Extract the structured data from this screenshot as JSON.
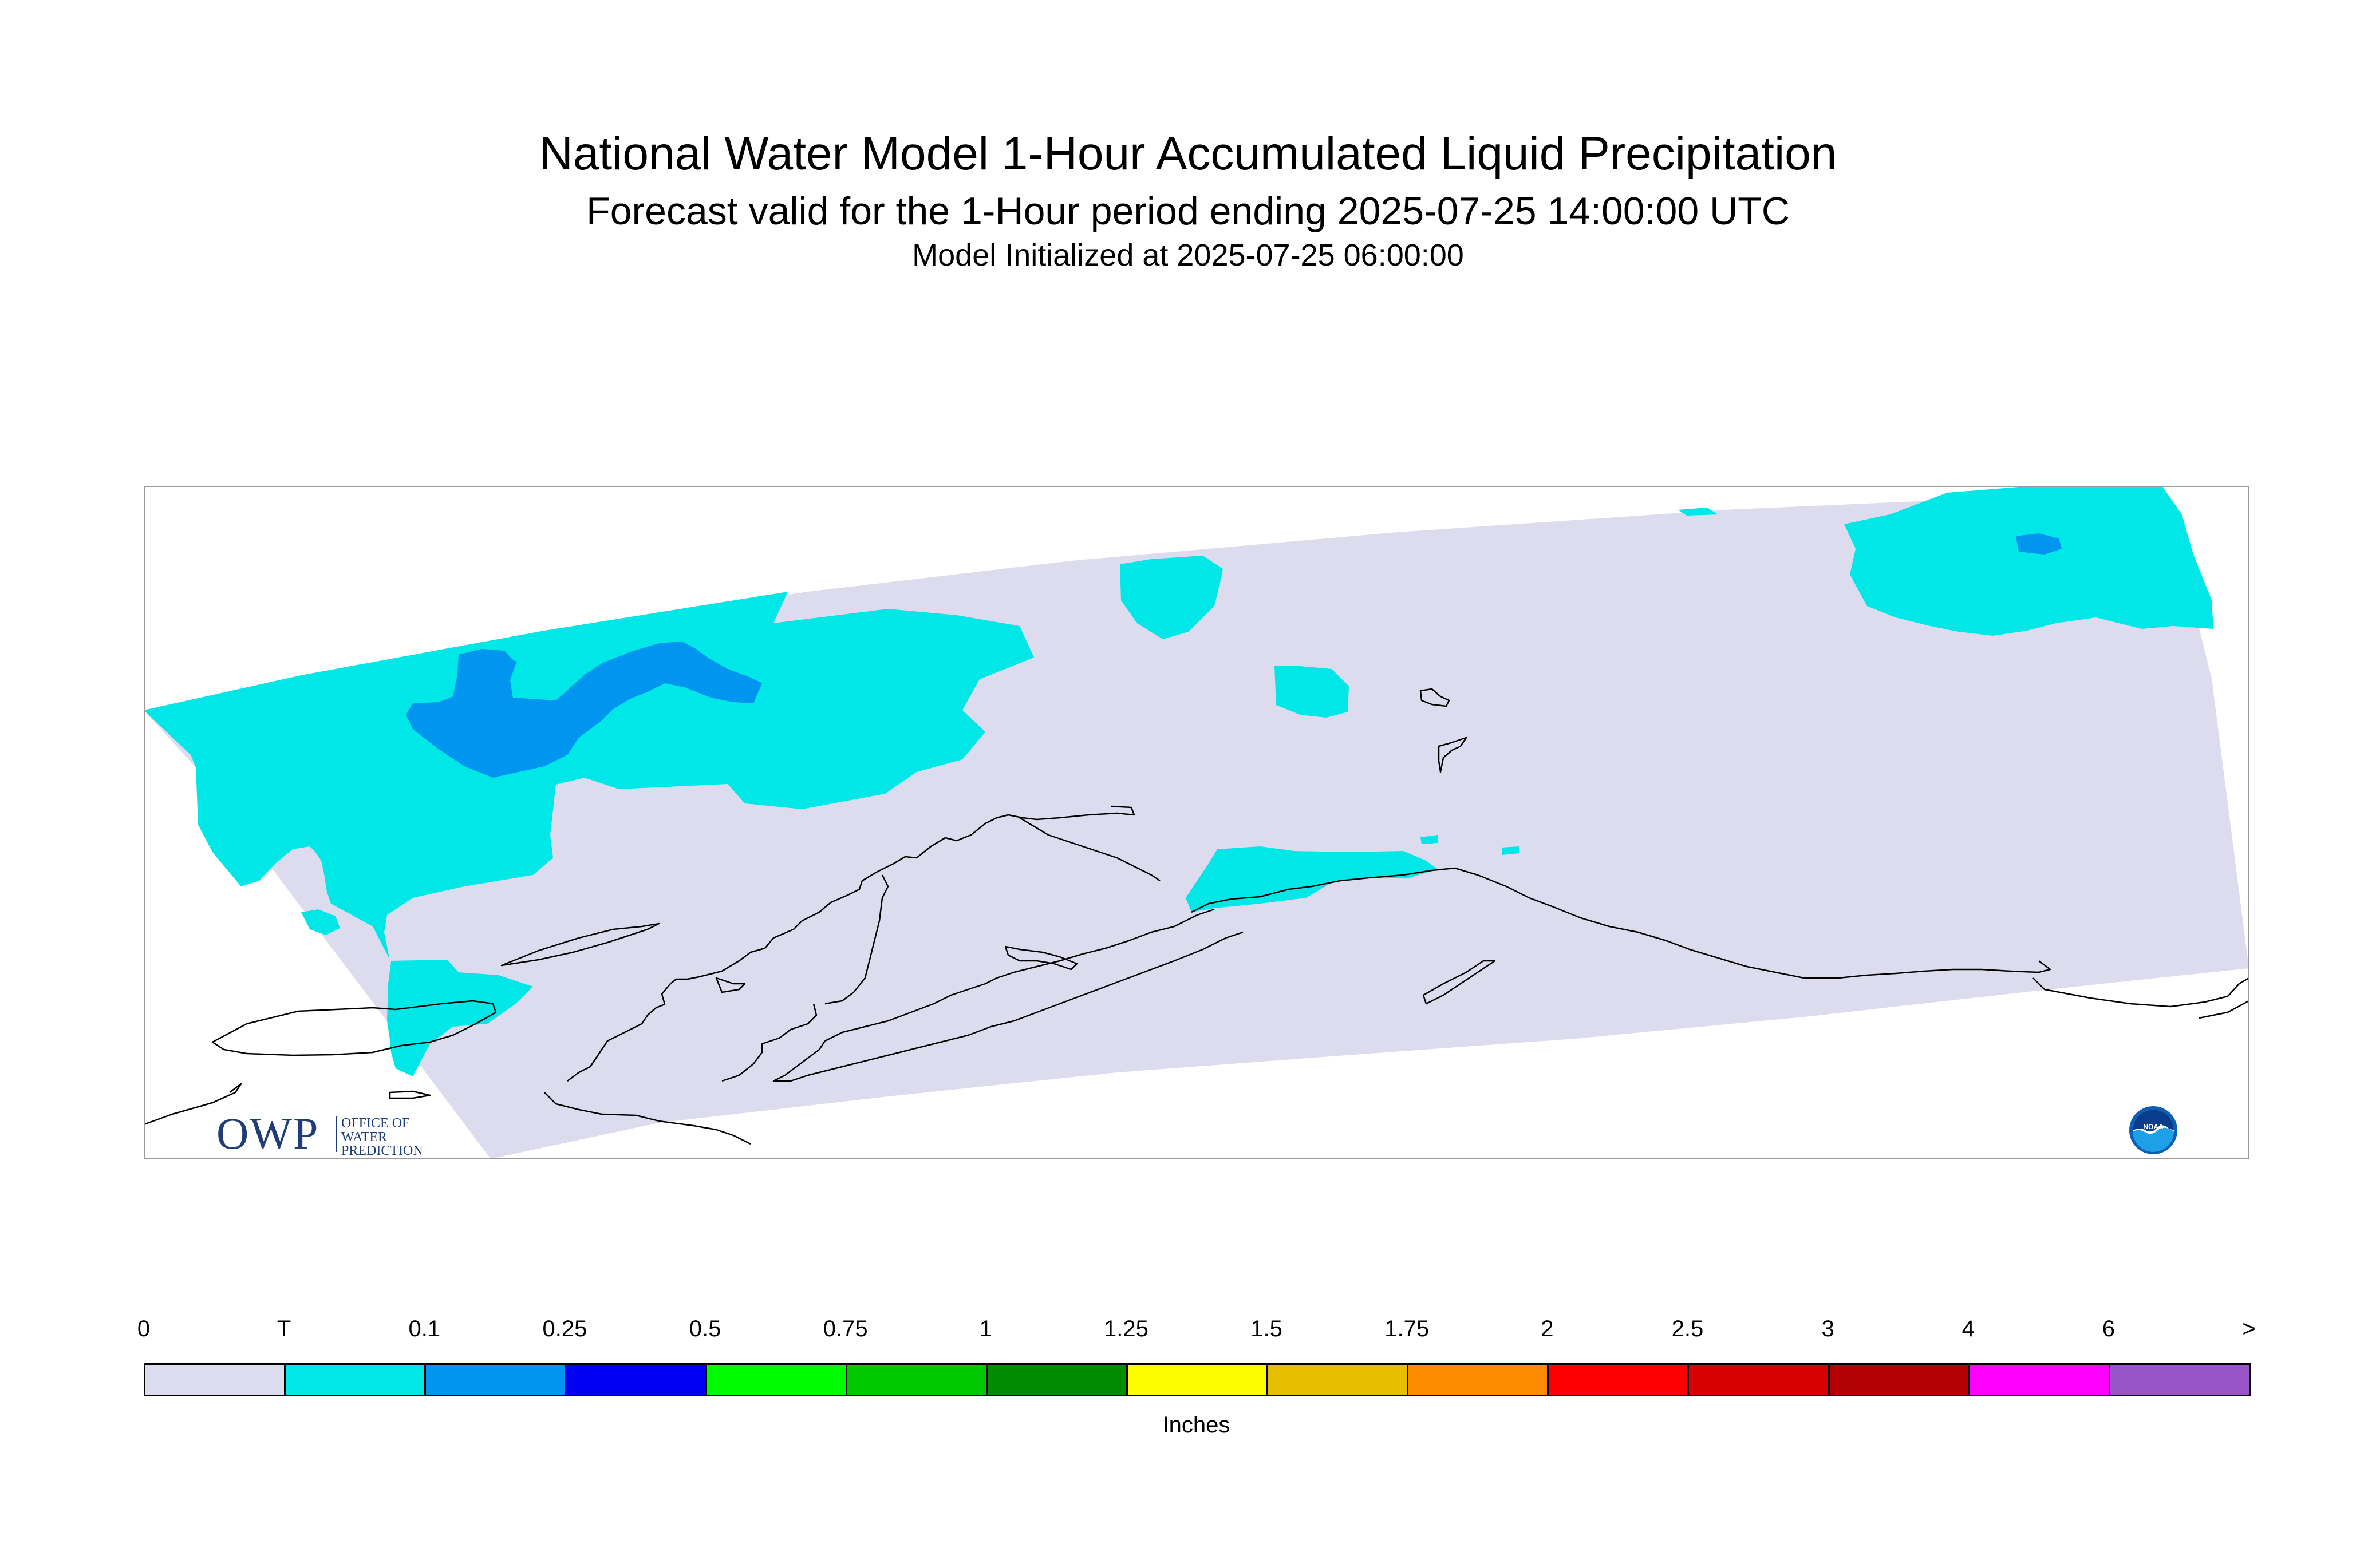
{
  "header": {
    "title": "National Water Model 1-Hour Accumulated Liquid Precipitation",
    "subtitle": "Forecast valid for the 1-Hour period ending 2025-07-25 14:00:00 UTC",
    "init": "Model Initialized at 2025-07-25 06:00:00"
  },
  "logos": {
    "owp": {
      "abbrev": "OWP",
      "line1": "OFFICE OF",
      "line2": "WATER",
      "line3": "PREDICTION"
    },
    "noaa": {
      "text": "NOAA"
    }
  },
  "legend": {
    "units": "Inches",
    "tick_labels": [
      "0",
      "T",
      "0.1",
      "0.25",
      "0.5",
      "0.75",
      "1",
      "1.25",
      "1.5",
      "1.75",
      "2",
      "2.5",
      "3",
      "4",
      "6",
      ">"
    ],
    "colors": [
      "#dcdcee",
      "#00e7e7",
      "#0095ee",
      "#0000f5",
      "#00fa00",
      "#00c800",
      "#008c00",
      "#fdfd00",
      "#e6be00",
      "#ff8c00",
      "#ff0000",
      "#d80000",
      "#b40000",
      "#ff00ff",
      "#9955c8"
    ]
  },
  "map": {
    "colors": {
      "no_precip": "#dcdcee",
      "trace": "#00e7e7",
      "light": "#0095ee",
      "coast": "#000000",
      "frame": "#9a9a9a"
    }
  }
}
